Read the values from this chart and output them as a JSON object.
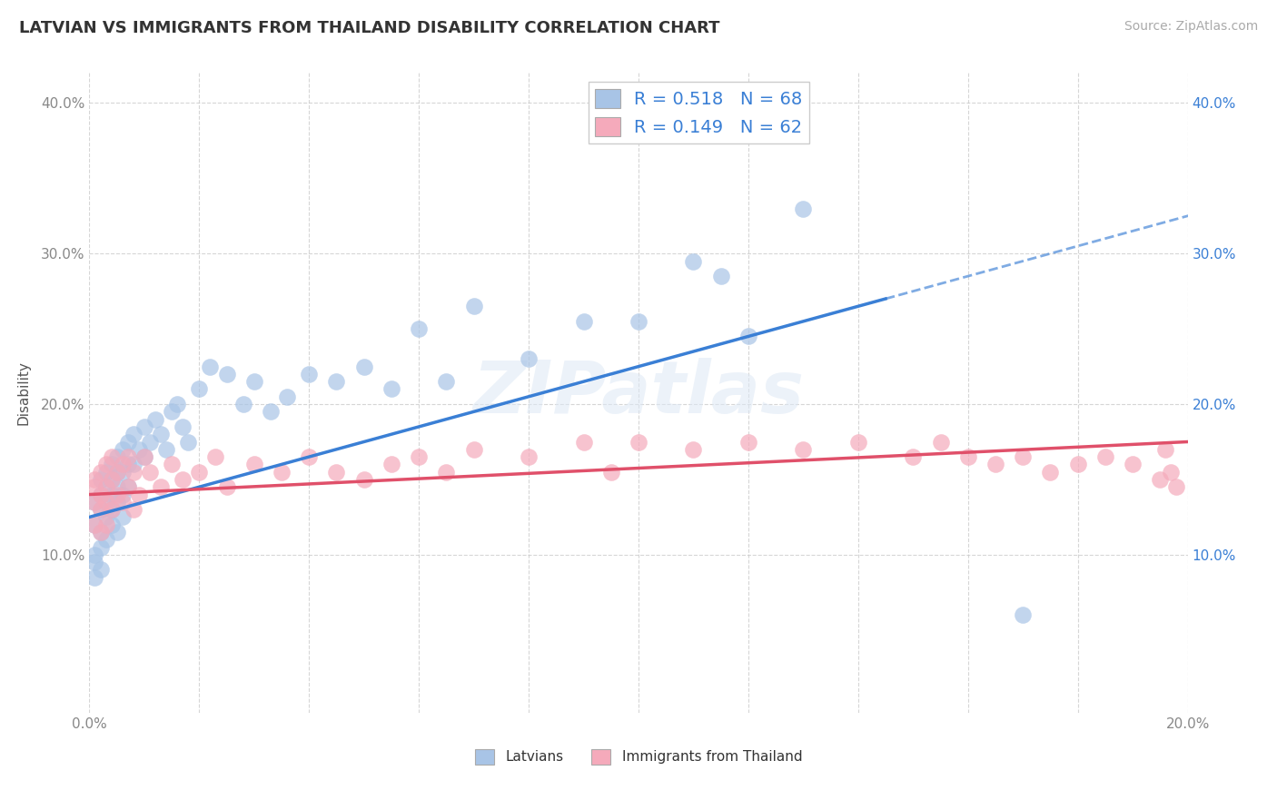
{
  "title": "LATVIAN VS IMMIGRANTS FROM THAILAND DISABILITY CORRELATION CHART",
  "source": "Source: ZipAtlas.com",
  "ylabel": "Disability",
  "xlim": [
    0.0,
    0.2
  ],
  "ylim": [
    -0.005,
    0.42
  ],
  "yticks": [
    0.1,
    0.2,
    0.3,
    0.4
  ],
  "ytick_labels": [
    "10.0%",
    "20.0%",
    "30.0%",
    "40.0%"
  ],
  "xticks": [
    0.0,
    0.02,
    0.04,
    0.06,
    0.08,
    0.1,
    0.12,
    0.14,
    0.16,
    0.18,
    0.2
  ],
  "xtick_labels": [
    "0.0%",
    "",
    "",
    "",
    "",
    "",
    "",
    "",
    "",
    "",
    "20.0%"
  ],
  "latvian_color": "#a8c4e6",
  "thailand_color": "#f5aabb",
  "trendline_latvian_color": "#3a7fd5",
  "trendline_thailand_color": "#e0506a",
  "legend_R_latvian": "0.518",
  "legend_N_latvian": "68",
  "legend_R_thailand": "0.149",
  "legend_N_thailand": "62",
  "background_color": "#ffffff",
  "grid_color": "#cccccc",
  "watermark": "ZIPatlas",
  "lat_trendline": [
    0.125,
    0.27
  ],
  "tha_trendline": [
    0.14,
    0.175
  ],
  "latvian_x": [
    0.001,
    0.001,
    0.001,
    0.001,
    0.001,
    0.002,
    0.002,
    0.002,
    0.002,
    0.002,
    0.002,
    0.003,
    0.003,
    0.003,
    0.003,
    0.003,
    0.004,
    0.004,
    0.004,
    0.004,
    0.004,
    0.005,
    0.005,
    0.005,
    0.005,
    0.005,
    0.006,
    0.006,
    0.006,
    0.006,
    0.007,
    0.007,
    0.007,
    0.008,
    0.008,
    0.009,
    0.01,
    0.01,
    0.011,
    0.012,
    0.013,
    0.014,
    0.015,
    0.016,
    0.017,
    0.018,
    0.02,
    0.022,
    0.025,
    0.028,
    0.03,
    0.033,
    0.036,
    0.04,
    0.045,
    0.05,
    0.055,
    0.06,
    0.065,
    0.07,
    0.08,
    0.09,
    0.1,
    0.11,
    0.115,
    0.12,
    0.13,
    0.17
  ],
  "latvian_y": [
    0.135,
    0.12,
    0.1,
    0.095,
    0.085,
    0.15,
    0.14,
    0.13,
    0.115,
    0.105,
    0.09,
    0.155,
    0.145,
    0.135,
    0.125,
    0.11,
    0.16,
    0.15,
    0.14,
    0.13,
    0.12,
    0.165,
    0.155,
    0.145,
    0.135,
    0.115,
    0.17,
    0.155,
    0.14,
    0.125,
    0.175,
    0.16,
    0.145,
    0.18,
    0.16,
    0.17,
    0.185,
    0.165,
    0.175,
    0.19,
    0.18,
    0.17,
    0.195,
    0.2,
    0.185,
    0.175,
    0.21,
    0.225,
    0.22,
    0.2,
    0.215,
    0.195,
    0.205,
    0.22,
    0.215,
    0.225,
    0.21,
    0.25,
    0.215,
    0.265,
    0.23,
    0.255,
    0.255,
    0.295,
    0.285,
    0.245,
    0.33,
    0.06
  ],
  "thailand_x": [
    0.001,
    0.001,
    0.001,
    0.001,
    0.002,
    0.002,
    0.002,
    0.002,
    0.003,
    0.003,
    0.003,
    0.003,
    0.004,
    0.004,
    0.004,
    0.005,
    0.005,
    0.006,
    0.006,
    0.007,
    0.007,
    0.008,
    0.008,
    0.009,
    0.01,
    0.011,
    0.013,
    0.015,
    0.017,
    0.02,
    0.023,
    0.025,
    0.03,
    0.035,
    0.04,
    0.045,
    0.05,
    0.055,
    0.06,
    0.065,
    0.07,
    0.08,
    0.09,
    0.095,
    0.1,
    0.11,
    0.12,
    0.13,
    0.14,
    0.15,
    0.155,
    0.16,
    0.165,
    0.17,
    0.175,
    0.18,
    0.185,
    0.19,
    0.195,
    0.196,
    0.197,
    0.198
  ],
  "thailand_y": [
    0.135,
    0.15,
    0.145,
    0.12,
    0.14,
    0.155,
    0.13,
    0.115,
    0.145,
    0.16,
    0.135,
    0.12,
    0.15,
    0.165,
    0.13,
    0.155,
    0.14,
    0.16,
    0.135,
    0.165,
    0.145,
    0.155,
    0.13,
    0.14,
    0.165,
    0.155,
    0.145,
    0.16,
    0.15,
    0.155,
    0.165,
    0.145,
    0.16,
    0.155,
    0.165,
    0.155,
    0.15,
    0.16,
    0.165,
    0.155,
    0.17,
    0.165,
    0.175,
    0.155,
    0.175,
    0.17,
    0.175,
    0.17,
    0.175,
    0.165,
    0.175,
    0.165,
    0.16,
    0.165,
    0.155,
    0.16,
    0.165,
    0.16,
    0.15,
    0.17,
    0.155,
    0.145
  ]
}
